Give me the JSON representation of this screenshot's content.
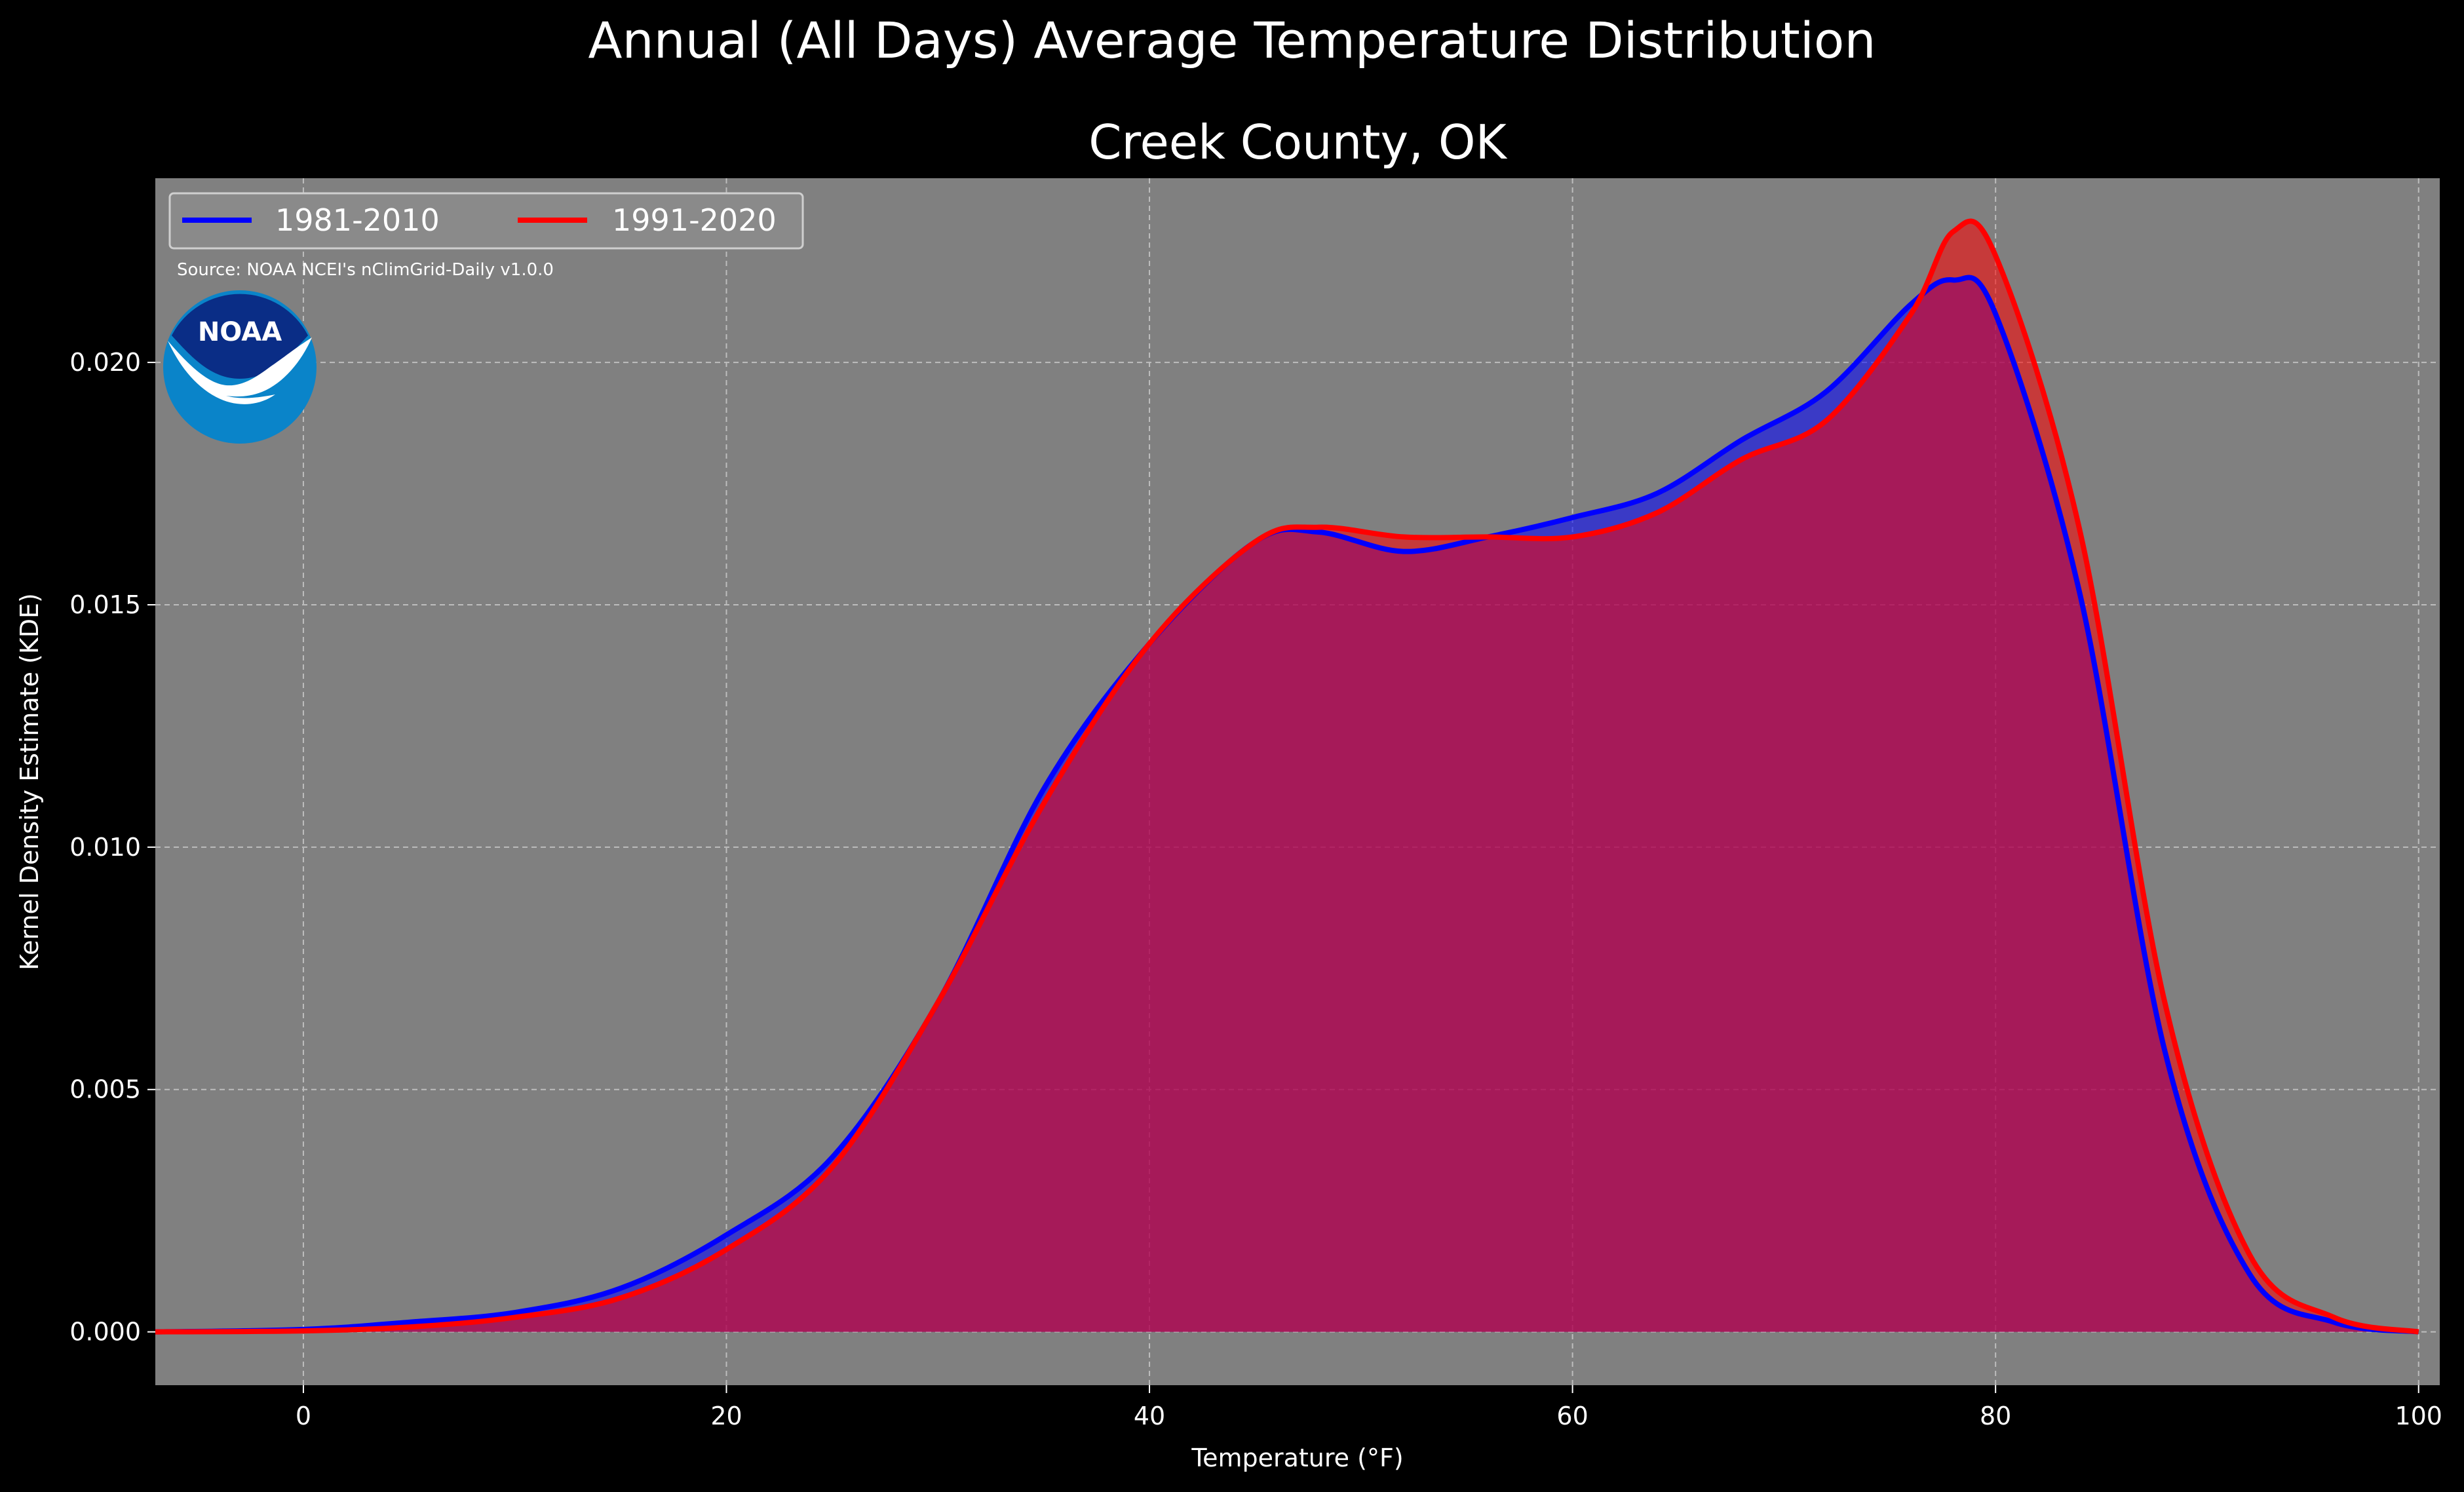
{
  "chart_data": {
    "type": "area",
    "title": "Annual (All Days) Average Temperature Distribution",
    "subtitle": "Creek County, OK",
    "xlabel": "Temperature (°F)",
    "ylabel": "Kernel Density Estimate (KDE)",
    "xlim": [
      -7,
      101
    ],
    "ylim": [
      -0.0011,
      0.0238
    ],
    "xticks": [
      0,
      20,
      40,
      60,
      80,
      100
    ],
    "yticks": [
      0.0,
      0.005,
      0.01,
      0.015,
      0.02
    ],
    "xtick_labels": [
      "0",
      "20",
      "40",
      "60",
      "80",
      "100"
    ],
    "ytick_labels": [
      "0.000",
      "0.005",
      "0.010",
      "0.015",
      "0.020"
    ],
    "grid": true,
    "legend_position": "top-left",
    "source_note": "Source: NOAA NCEI's nClimGrid-Daily v1.0.0",
    "logo_text": "NOAA",
    "series": [
      {
        "name": "1981-2010",
        "color": "#0000ff",
        "x": [
          -7,
          0,
          5,
          10,
          15,
          20,
          25,
          30,
          35,
          40,
          45,
          48,
          52,
          56,
          60,
          64,
          68,
          72,
          76,
          78,
          80,
          84,
          88,
          92,
          96,
          100
        ],
        "y": [
          0.0,
          5e-05,
          0.0002,
          0.0004,
          0.0009,
          0.002,
          0.0036,
          0.0068,
          0.0112,
          0.0142,
          0.0163,
          0.0165,
          0.0161,
          0.0164,
          0.0168,
          0.0173,
          0.0184,
          0.0194,
          0.0212,
          0.0217,
          0.021,
          0.0152,
          0.0058,
          0.0012,
          0.0002,
          0.0
        ]
      },
      {
        "name": "1991-2020",
        "color": "#ff0000",
        "x": [
          -7,
          0,
          5,
          10,
          15,
          20,
          25,
          30,
          35,
          40,
          45,
          48,
          52,
          56,
          60,
          64,
          68,
          72,
          76,
          78,
          80,
          84,
          88,
          92,
          96,
          100
        ],
        "y": [
          0.0,
          2e-05,
          0.0001,
          0.0003,
          0.0007,
          0.0017,
          0.0034,
          0.0068,
          0.0109,
          0.0142,
          0.0163,
          0.0166,
          0.0164,
          0.0164,
          0.0164,
          0.0169,
          0.018,
          0.0188,
          0.021,
          0.0227,
          0.0222,
          0.0165,
          0.0068,
          0.0016,
          0.0003,
          0.0
        ]
      }
    ]
  }
}
